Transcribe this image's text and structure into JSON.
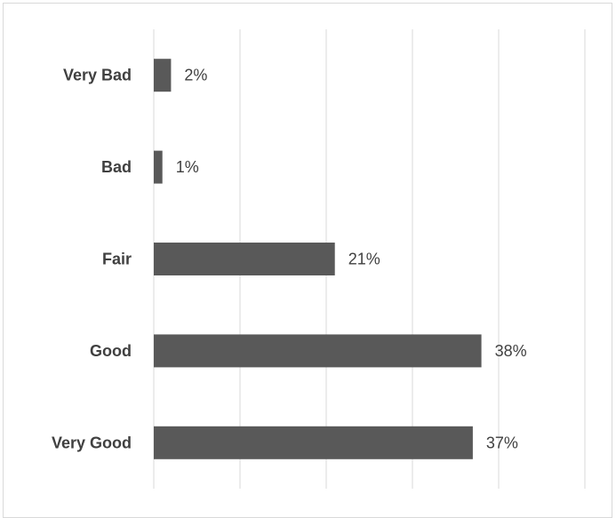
{
  "chart_data": {
    "type": "bar",
    "orientation": "horizontal",
    "categories": [
      "Very Bad",
      "Bad",
      "Fair",
      "Good",
      "Very Good"
    ],
    "values": [
      2,
      1,
      21,
      38,
      37
    ],
    "value_labels": [
      "2%",
      "1%",
      "21%",
      "38%",
      "37%"
    ],
    "xlim": [
      0,
      50
    ],
    "x_ticks": [
      0,
      10,
      20,
      30,
      40,
      50
    ],
    "x_tick_labels_visible": false,
    "grid": "vertical",
    "legend": "none",
    "title": "",
    "xlabel": "",
    "ylabel": "",
    "colors": {
      "bar": "#595959",
      "grid": "#d9d9d9",
      "text": "#404040",
      "frame": "#d9d9d9"
    }
  }
}
